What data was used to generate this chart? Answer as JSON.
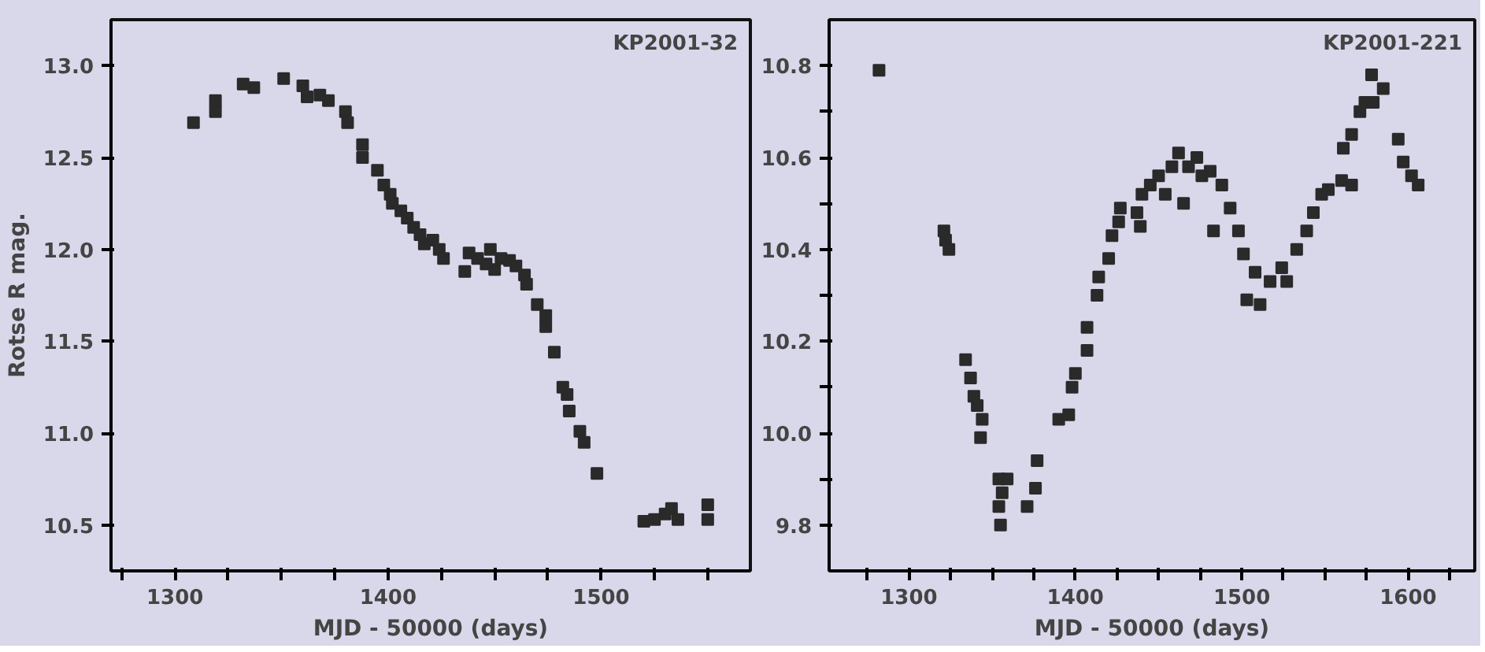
{
  "chart_data": [
    {
      "type": "scatter",
      "title": "KP2001-32",
      "xlabel": "MJD - 50000 (days)",
      "ylabel": "Rotse R mag.",
      "marker": "square",
      "grid": false,
      "xlim": [
        1270,
        1570
      ],
      "ylim": [
        10.25,
        13.25
      ],
      "xticks": [
        {
          "value": 1275,
          "label": null
        },
        1300,
        {
          "value": 1325,
          "label": null
        },
        {
          "value": 1350,
          "label": null
        },
        {
          "value": 1375,
          "label": null
        },
        1400,
        {
          "value": 1425,
          "label": null
        },
        {
          "value": 1450,
          "label": null
        },
        {
          "value": 1475,
          "label": null
        },
        1500,
        {
          "value": 1525,
          "label": null
        },
        {
          "value": 1550,
          "label": null
        }
      ],
      "yticks": [
        {
          "value": 10.5,
          "label": "10.5"
        },
        {
          "value": 11.0,
          "label": "11.0"
        },
        {
          "value": 11.5,
          "label": "11.5"
        },
        {
          "value": 12.0,
          "label": "12.0"
        },
        {
          "value": 12.5,
          "label": "12.5"
        },
        {
          "value": 13.0,
          "label": "13.0"
        }
      ],
      "series": [
        {
          "color": "#2a2a2a",
          "x": [
            1308.7,
            1319,
            1319,
            1332,
            1337,
            1351,
            1360,
            1362,
            1368,
            1372,
            1380,
            1381,
            1388,
            1388,
            1395,
            1398,
            1401,
            1402,
            1406,
            1409,
            1412,
            1415,
            1417,
            1421,
            1424,
            1426,
            1436,
            1438,
            1442,
            1446,
            1448,
            1450,
            1453,
            1457,
            1460,
            1464,
            1465,
            1470,
            1474,
            1474,
            1478,
            1482,
            1484,
            1485,
            1490,
            1492,
            1498,
            1520,
            1525,
            1530,
            1533,
            1536,
            1550,
            1550
          ],
          "values": [
            12.69,
            12.75,
            12.81,
            12.9,
            12.88,
            12.93,
            12.89,
            12.83,
            12.84,
            12.81,
            12.75,
            12.69,
            12.57,
            12.5,
            12.43,
            12.35,
            12.3,
            12.25,
            12.21,
            12.17,
            12.12,
            12.08,
            12.03,
            12.05,
            12.0,
            11.95,
            11.88,
            11.98,
            11.95,
            11.92,
            12.0,
            11.89,
            11.95,
            11.94,
            11.91,
            11.86,
            11.81,
            11.7,
            11.64,
            11.58,
            11.44,
            11.25,
            11.21,
            11.12,
            11.01,
            10.95,
            10.78,
            10.52,
            10.53,
            10.56,
            10.59,
            10.53,
            10.61,
            10.53
          ]
        }
      ]
    },
    {
      "type": "scatter",
      "title": "KP2001-221",
      "xlabel": "MJD - 50000 (days)",
      "marker": "square",
      "grid": false,
      "xlim": [
        1252,
        1640
      ],
      "ylim": [
        9.7,
        10.9
      ],
      "xticks": [
        {
          "value": 1275,
          "label": null
        },
        1300,
        {
          "value": 1325,
          "label": null
        },
        {
          "value": 1350,
          "label": null
        },
        {
          "value": 1375,
          "label": null
        },
        1400,
        {
          "value": 1425,
          "label": null
        },
        {
          "value": 1450,
          "label": null
        },
        {
          "value": 1475,
          "label": null
        },
        1500,
        {
          "value": 1525,
          "label": null
        },
        {
          "value": 1550,
          "label": null
        },
        {
          "value": 1575,
          "label": null
        },
        1600,
        {
          "value": 1625,
          "label": null
        }
      ],
      "yticks": [
        {
          "value": 9.8,
          "label": "9.8"
        },
        {
          "value": 9.9,
          "label": null
        },
        {
          "value": 10.0,
          "label": "10.0"
        },
        {
          "value": 10.1,
          "label": null
        },
        {
          "value": 10.2,
          "label": "10.2"
        },
        {
          "value": 10.3,
          "label": null
        },
        {
          "value": 10.4,
          "label": "10.4"
        },
        {
          "value": 10.5,
          "label": null
        },
        {
          "value": 10.6,
          "label": "10.6"
        },
        {
          "value": 10.7,
          "label": null
        },
        {
          "value": 10.8,
          "label": "10.8"
        }
      ],
      "series": [
        {
          "color": "#2a2a2a",
          "x": [
            1282,
            1321,
            1322,
            1324,
            1334,
            1337,
            1339,
            1341,
            1344,
            1343,
            1354,
            1356,
            1354,
            1355,
            1359,
            1371,
            1376,
            1377,
            1390,
            1396,
            1398,
            1400,
            1407,
            1407,
            1413,
            1414,
            1420,
            1422,
            1426,
            1427,
            1437,
            1439,
            1440,
            1445,
            1450,
            1454,
            1458,
            1462,
            1465,
            1468,
            1473,
            1476,
            1483,
            1481,
            1488,
            1493,
            1498,
            1501,
            1503,
            1508,
            1511,
            1517,
            1524,
            1527,
            1533,
            1539,
            1543,
            1548,
            1552,
            1560,
            1561,
            1566,
            1566,
            1571,
            1574,
            1578,
            1579,
            1585,
            1594,
            1597,
            1602,
            1606
          ],
          "values": [
            10.79,
            10.44,
            10.42,
            10.4,
            10.16,
            10.12,
            10.08,
            10.06,
            10.03,
            9.99,
            9.9,
            9.87,
            9.84,
            9.8,
            9.9,
            9.84,
            9.88,
            9.94,
            10.03,
            10.04,
            10.1,
            10.13,
            10.18,
            10.23,
            10.3,
            10.34,
            10.38,
            10.43,
            10.46,
            10.49,
            10.48,
            10.45,
            10.52,
            10.54,
            10.56,
            10.52,
            10.58,
            10.61,
            10.5,
            10.58,
            10.6,
            10.56,
            10.44,
            10.57,
            10.54,
            10.49,
            10.44,
            10.39,
            10.29,
            10.35,
            10.28,
            10.33,
            10.36,
            10.33,
            10.4,
            10.44,
            10.48,
            10.52,
            10.53,
            10.55,
            10.62,
            10.65,
            10.54,
            10.7,
            10.72,
            10.78,
            10.72,
            10.75,
            10.64,
            10.59,
            10.56,
            10.54
          ]
        }
      ]
    }
  ]
}
